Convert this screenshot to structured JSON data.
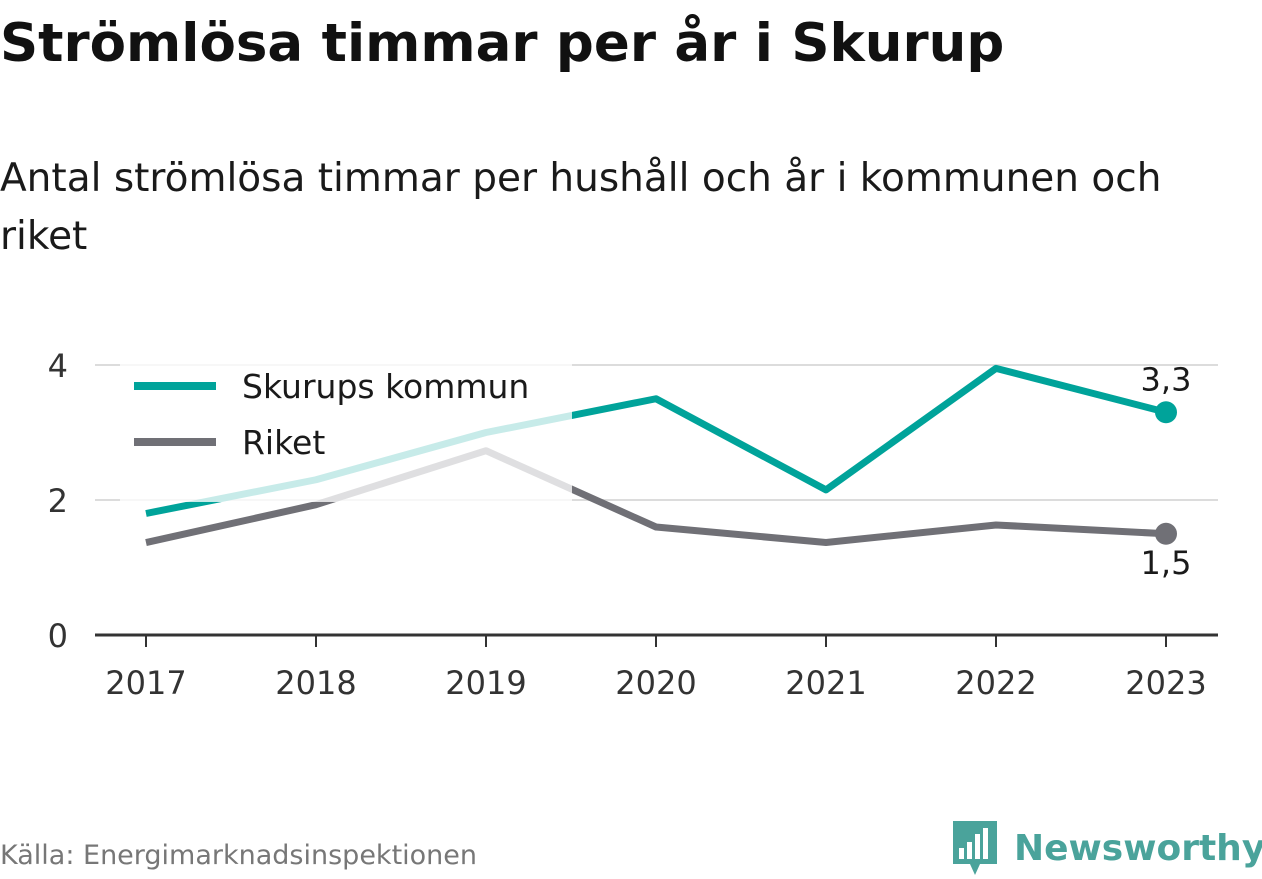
{
  "header": {
    "title": "Strömlösa timmar per år i Skurup",
    "subtitle": "Antal strömlösa timmar per hushåll och år i kommunen och riket"
  },
  "footer": {
    "source": "Källa: Energimarknadsinspektionen",
    "brand": "Newsworthy",
    "brand_icon": "bar-chart-speech-bubble-icon",
    "brand_color": "#4aa39b"
  },
  "chart_data": {
    "type": "line",
    "x": [
      "2017",
      "2018",
      "2019",
      "2020",
      "2021",
      "2022",
      "2023"
    ],
    "ylim": [
      0,
      4
    ],
    "yticks": [
      "0",
      "2",
      "4"
    ],
    "grid": true,
    "legend_position": "top-left",
    "series": [
      {
        "name": "Skurups kommun",
        "color": "#00a39a",
        "values": [
          1.8,
          2.3,
          3.0,
          3.5,
          2.15,
          3.95,
          3.3
        ],
        "end_label": "3,3"
      },
      {
        "name": "Riket",
        "color": "#707076",
        "values": [
          1.37,
          1.93,
          2.73,
          1.6,
          1.37,
          1.63,
          1.5
        ],
        "end_label": "1,5"
      }
    ]
  }
}
